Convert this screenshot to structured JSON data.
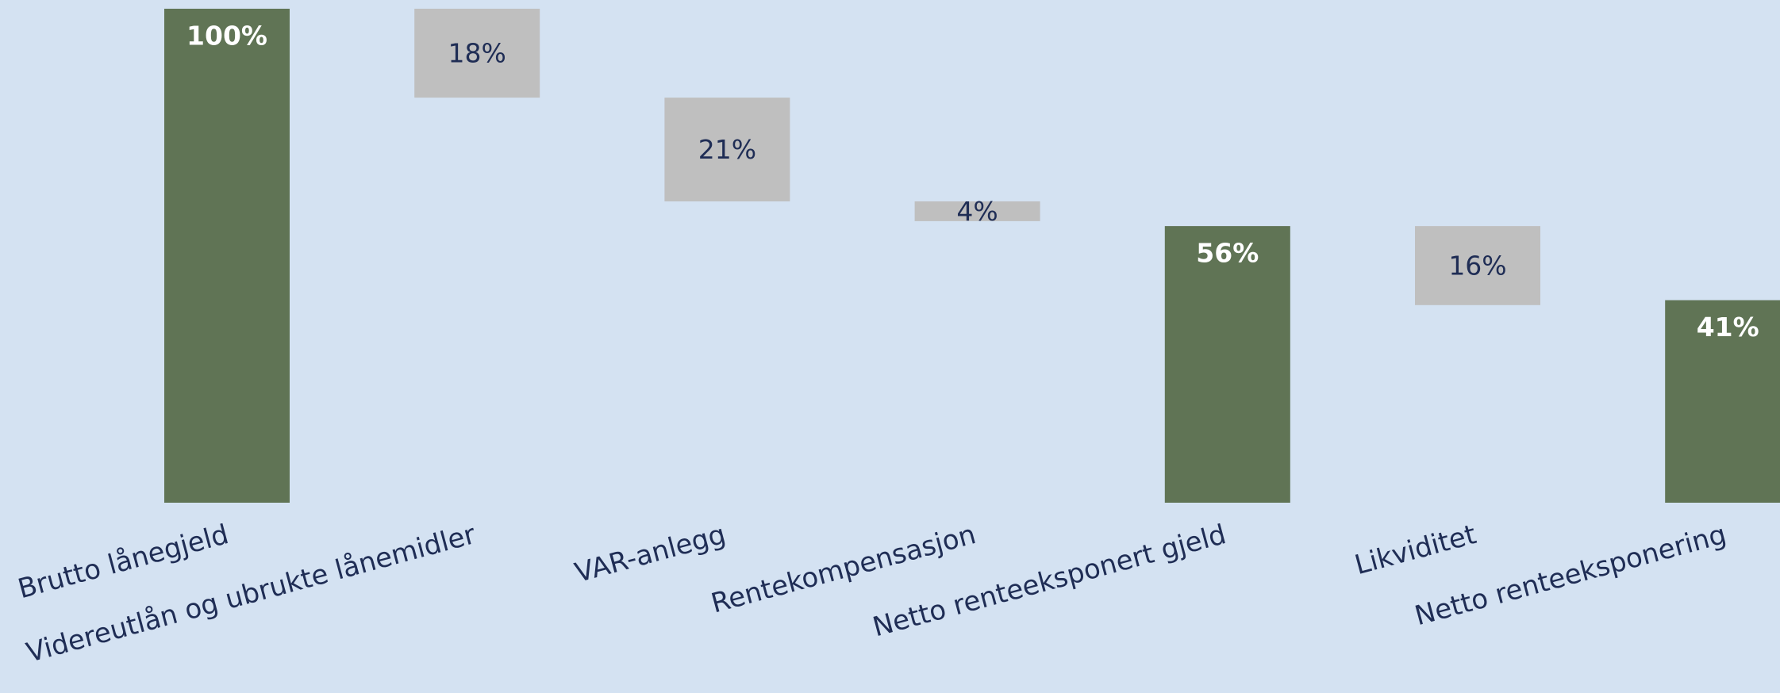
{
  "chart_data": {
    "type": "waterfall",
    "categories": [
      "Brutto lånegjeld",
      "Videreutlån og ubrukte lånemidler",
      "VAR-anlegg",
      "Rentekompensasjon",
      "Netto renteeksponert gjeld",
      "Likviditet",
      "Netto renteeksponering"
    ],
    "values": [
      100,
      18,
      21,
      4,
      56,
      16,
      41
    ],
    "value_labels": [
      "100%",
      "18%",
      "21%",
      "4%",
      "56%",
      "16%",
      "41%"
    ],
    "measures": [
      "total",
      "decrease",
      "decrease",
      "decrease",
      "total",
      "decrease",
      "total"
    ],
    "total_color": "#607455",
    "decrease_color": "#bfbfbf",
    "ylim": [
      0,
      100
    ]
  }
}
